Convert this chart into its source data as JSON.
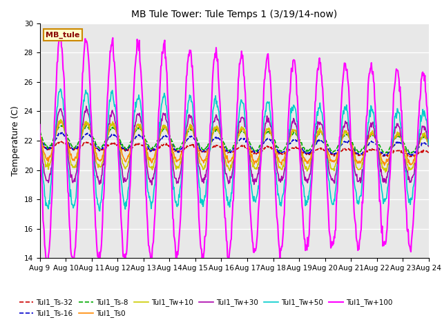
{
  "title": "MB Tule Tower: Tule Temps 1 (3/19/14-now)",
  "ylabel": "Temperature (C)",
  "ylim": [
    14,
    30
  ],
  "yticks": [
    14,
    16,
    18,
    20,
    22,
    24,
    26,
    28,
    30
  ],
  "xlim": [
    0,
    15
  ],
  "xtick_labels": [
    "Aug 9",
    "Aug 10",
    "Aug 11",
    "Aug 12",
    "Aug 13",
    "Aug 14",
    "Aug 15",
    "Aug 16",
    "Aug 17",
    "Aug 18",
    "Aug 19",
    "Aug 20",
    "Aug 21",
    "Aug 22",
    "Aug 23",
    "Aug 24"
  ],
  "xtick_positions": [
    0,
    1,
    2,
    3,
    4,
    5,
    6,
    7,
    8,
    9,
    10,
    11,
    12,
    13,
    14,
    15
  ],
  "background_color": "#e8e8e8",
  "grid_color": "#ffffff",
  "series": [
    {
      "label": "Tul1_Ts-32",
      "color": "#cc0000",
      "lw": 1.2,
      "linestyle": "--"
    },
    {
      "label": "Tul1_Ts-16",
      "color": "#0000cc",
      "lw": 1.2,
      "linestyle": "--"
    },
    {
      "label": "Tul1_Ts-8",
      "color": "#00aa00",
      "lw": 1.2,
      "linestyle": "--"
    },
    {
      "label": "Tul1_Ts0",
      "color": "#ff8800",
      "lw": 1.2,
      "linestyle": "-"
    },
    {
      "label": "Tul1_Tw+10",
      "color": "#cccc00",
      "lw": 1.2,
      "linestyle": "-"
    },
    {
      "label": "Tul1_Tw+30",
      "color": "#aa00aa",
      "lw": 1.2,
      "linestyle": "-"
    },
    {
      "label": "Tul1_Tw+50",
      "color": "#00cccc",
      "lw": 1.2,
      "linestyle": "-"
    },
    {
      "label": "Tul1_Tw+100",
      "color": "#ff00ff",
      "lw": 1.5,
      "linestyle": "-"
    }
  ],
  "legend_box_color": "#ffffcc",
  "legend_box_edge": "#cc8800",
  "legend_text": "MB_tule",
  "title_fontsize": 10,
  "axis_fontsize": 9,
  "tick_fontsize": 7.5
}
